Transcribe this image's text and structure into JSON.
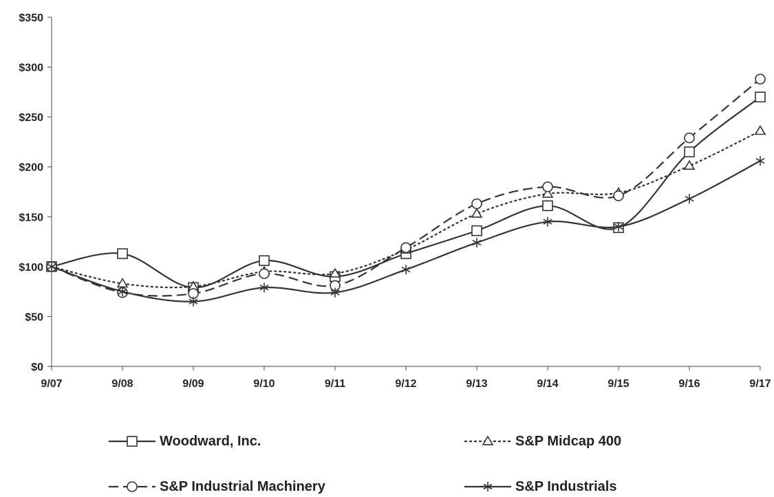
{
  "chart_data": {
    "type": "line",
    "title": "",
    "xlabel": "",
    "ylabel": "",
    "categories": [
      "9/07",
      "9/08",
      "9/09",
      "9/10",
      "9/11",
      "9/12",
      "9/13",
      "9/14",
      "9/15",
      "9/16",
      "9/17"
    ],
    "ylim": [
      0,
      350
    ],
    "ytick_values": [
      0,
      50,
      100,
      150,
      200,
      250,
      300,
      350
    ],
    "ytick_labels": [
      "$0",
      "$50",
      "$100",
      "$150",
      "$200",
      "$250",
      "$300",
      "$350"
    ],
    "grid": false,
    "legend_placement": "bottom",
    "series": [
      {
        "name": "Woodward, Inc.",
        "marker": "square",
        "dash": "solid",
        "values": [
          100,
          113,
          79,
          106,
          90,
          113,
          136,
          161,
          139,
          215,
          270
        ]
      },
      {
        "name": "S&P Midcap 400",
        "marker": "triangle",
        "dash": "dotted",
        "values": [
          100,
          83,
          80,
          95,
          93,
          117,
          153,
          173,
          174,
          201,
          236
        ]
      },
      {
        "name": "S&P Industrial Machinery",
        "marker": "circle",
        "dash": "dashed",
        "values": [
          100,
          74,
          73,
          93,
          81,
          119,
          163,
          180,
          171,
          229,
          288
        ]
      },
      {
        "name": "S&P Industrials",
        "marker": "asterisk",
        "dash": "solid",
        "values": [
          100,
          75,
          65,
          79,
          74,
          97,
          124,
          145,
          140,
          168,
          206
        ]
      }
    ]
  }
}
